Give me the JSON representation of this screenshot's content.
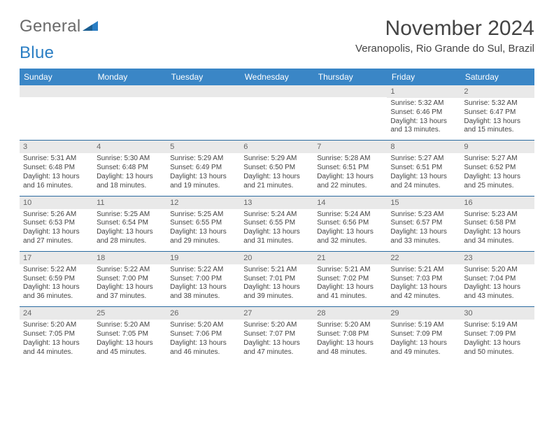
{
  "logo": {
    "text_general": "General",
    "text_blue": "Blue"
  },
  "header": {
    "month_title": "November 2024",
    "location": "Veranopolis, Rio Grande do Sul, Brazil"
  },
  "colors": {
    "header_bg": "#3a86c6",
    "header_text": "#ffffff",
    "daynum_bg": "#e9e9e9",
    "border": "#2a6aa0",
    "body_text": "#444444"
  },
  "weekdays": [
    "Sunday",
    "Monday",
    "Tuesday",
    "Wednesday",
    "Thursday",
    "Friday",
    "Saturday"
  ],
  "calendar": {
    "first_weekday_index": 5,
    "days": [
      {
        "n": 1,
        "sunrise": "5:32 AM",
        "sunset": "6:46 PM",
        "daylight": "13 hours and 13 minutes."
      },
      {
        "n": 2,
        "sunrise": "5:32 AM",
        "sunset": "6:47 PM",
        "daylight": "13 hours and 15 minutes."
      },
      {
        "n": 3,
        "sunrise": "5:31 AM",
        "sunset": "6:48 PM",
        "daylight": "13 hours and 16 minutes."
      },
      {
        "n": 4,
        "sunrise": "5:30 AM",
        "sunset": "6:48 PM",
        "daylight": "13 hours and 18 minutes."
      },
      {
        "n": 5,
        "sunrise": "5:29 AM",
        "sunset": "6:49 PM",
        "daylight": "13 hours and 19 minutes."
      },
      {
        "n": 6,
        "sunrise": "5:29 AM",
        "sunset": "6:50 PM",
        "daylight": "13 hours and 21 minutes."
      },
      {
        "n": 7,
        "sunrise": "5:28 AM",
        "sunset": "6:51 PM",
        "daylight": "13 hours and 22 minutes."
      },
      {
        "n": 8,
        "sunrise": "5:27 AM",
        "sunset": "6:51 PM",
        "daylight": "13 hours and 24 minutes."
      },
      {
        "n": 9,
        "sunrise": "5:27 AM",
        "sunset": "6:52 PM",
        "daylight": "13 hours and 25 minutes."
      },
      {
        "n": 10,
        "sunrise": "5:26 AM",
        "sunset": "6:53 PM",
        "daylight": "13 hours and 27 minutes."
      },
      {
        "n": 11,
        "sunrise": "5:25 AM",
        "sunset": "6:54 PM",
        "daylight": "13 hours and 28 minutes."
      },
      {
        "n": 12,
        "sunrise": "5:25 AM",
        "sunset": "6:55 PM",
        "daylight": "13 hours and 29 minutes."
      },
      {
        "n": 13,
        "sunrise": "5:24 AM",
        "sunset": "6:55 PM",
        "daylight": "13 hours and 31 minutes."
      },
      {
        "n": 14,
        "sunrise": "5:24 AM",
        "sunset": "6:56 PM",
        "daylight": "13 hours and 32 minutes."
      },
      {
        "n": 15,
        "sunrise": "5:23 AM",
        "sunset": "6:57 PM",
        "daylight": "13 hours and 33 minutes."
      },
      {
        "n": 16,
        "sunrise": "5:23 AM",
        "sunset": "6:58 PM",
        "daylight": "13 hours and 34 minutes."
      },
      {
        "n": 17,
        "sunrise": "5:22 AM",
        "sunset": "6:59 PM",
        "daylight": "13 hours and 36 minutes."
      },
      {
        "n": 18,
        "sunrise": "5:22 AM",
        "sunset": "7:00 PM",
        "daylight": "13 hours and 37 minutes."
      },
      {
        "n": 19,
        "sunrise": "5:22 AM",
        "sunset": "7:00 PM",
        "daylight": "13 hours and 38 minutes."
      },
      {
        "n": 20,
        "sunrise": "5:21 AM",
        "sunset": "7:01 PM",
        "daylight": "13 hours and 39 minutes."
      },
      {
        "n": 21,
        "sunrise": "5:21 AM",
        "sunset": "7:02 PM",
        "daylight": "13 hours and 41 minutes."
      },
      {
        "n": 22,
        "sunrise": "5:21 AM",
        "sunset": "7:03 PM",
        "daylight": "13 hours and 42 minutes."
      },
      {
        "n": 23,
        "sunrise": "5:20 AM",
        "sunset": "7:04 PM",
        "daylight": "13 hours and 43 minutes."
      },
      {
        "n": 24,
        "sunrise": "5:20 AM",
        "sunset": "7:05 PM",
        "daylight": "13 hours and 44 minutes."
      },
      {
        "n": 25,
        "sunrise": "5:20 AM",
        "sunset": "7:05 PM",
        "daylight": "13 hours and 45 minutes."
      },
      {
        "n": 26,
        "sunrise": "5:20 AM",
        "sunset": "7:06 PM",
        "daylight": "13 hours and 46 minutes."
      },
      {
        "n": 27,
        "sunrise": "5:20 AM",
        "sunset": "7:07 PM",
        "daylight": "13 hours and 47 minutes."
      },
      {
        "n": 28,
        "sunrise": "5:20 AM",
        "sunset": "7:08 PM",
        "daylight": "13 hours and 48 minutes."
      },
      {
        "n": 29,
        "sunrise": "5:19 AM",
        "sunset": "7:09 PM",
        "daylight": "13 hours and 49 minutes."
      },
      {
        "n": 30,
        "sunrise": "5:19 AM",
        "sunset": "7:09 PM",
        "daylight": "13 hours and 50 minutes."
      }
    ],
    "labels": {
      "sunrise_prefix": "Sunrise: ",
      "sunset_prefix": "Sunset: ",
      "daylight_prefix": "Daylight: "
    }
  }
}
